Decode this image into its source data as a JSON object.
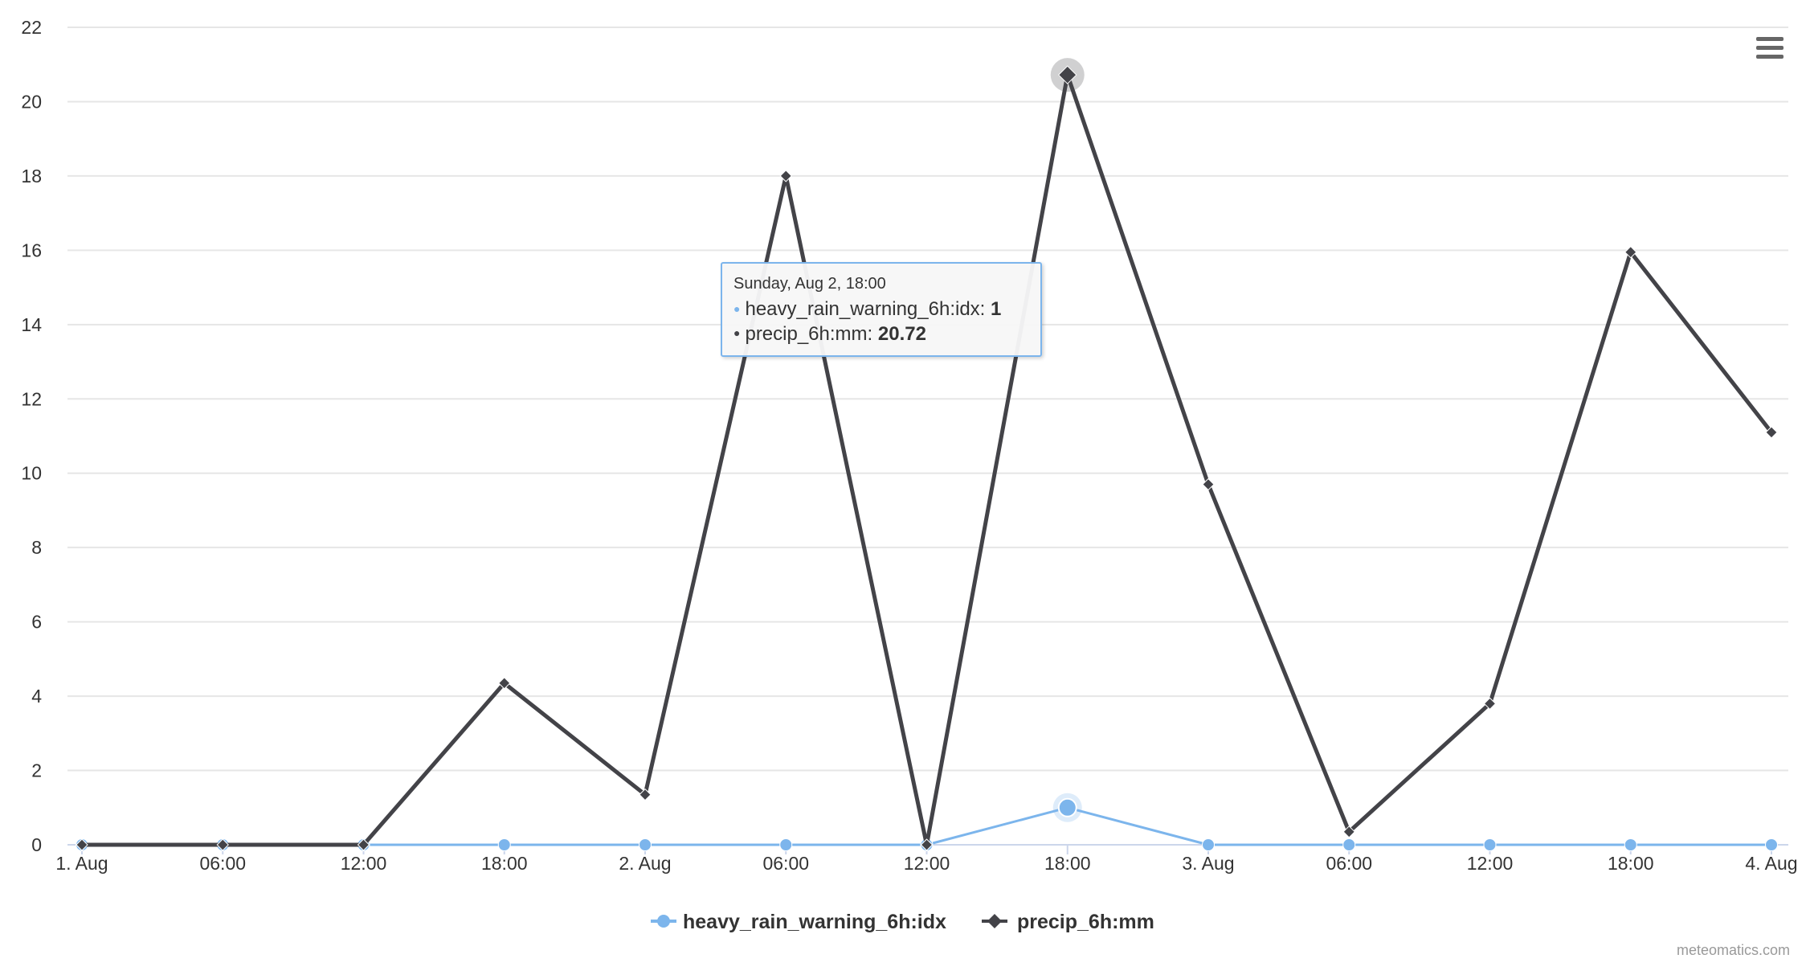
{
  "chart_data": {
    "type": "line",
    "x": [
      "1. Aug",
      "06:00",
      "12:00",
      "18:00",
      "2. Aug",
      "06:00",
      "12:00",
      "18:00",
      "3. Aug",
      "06:00",
      "12:00",
      "18:00",
      "4. Aug"
    ],
    "ylim": [
      0,
      22
    ],
    "yticks": [
      0,
      2,
      4,
      6,
      8,
      10,
      12,
      14,
      16,
      18,
      20,
      22
    ],
    "grid": true,
    "legend_position": "bottom-center",
    "series": [
      {
        "name": "heavy_rain_warning_6h:idx",
        "color": "#7cb5ec",
        "marker": "circle",
        "values": [
          0,
          0,
          0,
          0,
          0,
          0,
          0,
          1,
          0,
          0,
          0,
          0,
          0
        ]
      },
      {
        "name": "precip_6h:mm",
        "color": "#434348",
        "marker": "diamond",
        "values": [
          0,
          0,
          0,
          4.35,
          1.35,
          18,
          0,
          20.72,
          9.7,
          0.35,
          3.8,
          15.95,
          11.1
        ]
      }
    ],
    "highlight_index": 7,
    "tooltip": {
      "header": "Sunday, Aug 2, 18:00",
      "rows": [
        {
          "name": "heavy_rain_warning_6h:idx",
          "value": "1",
          "color": "#7cb5ec"
        },
        {
          "name": "precip_6h:mm",
          "value": "20.72",
          "color": "#434348"
        }
      ]
    },
    "credits": "meteomatics.com"
  },
  "menu_icon": "hamburger-menu-icon"
}
